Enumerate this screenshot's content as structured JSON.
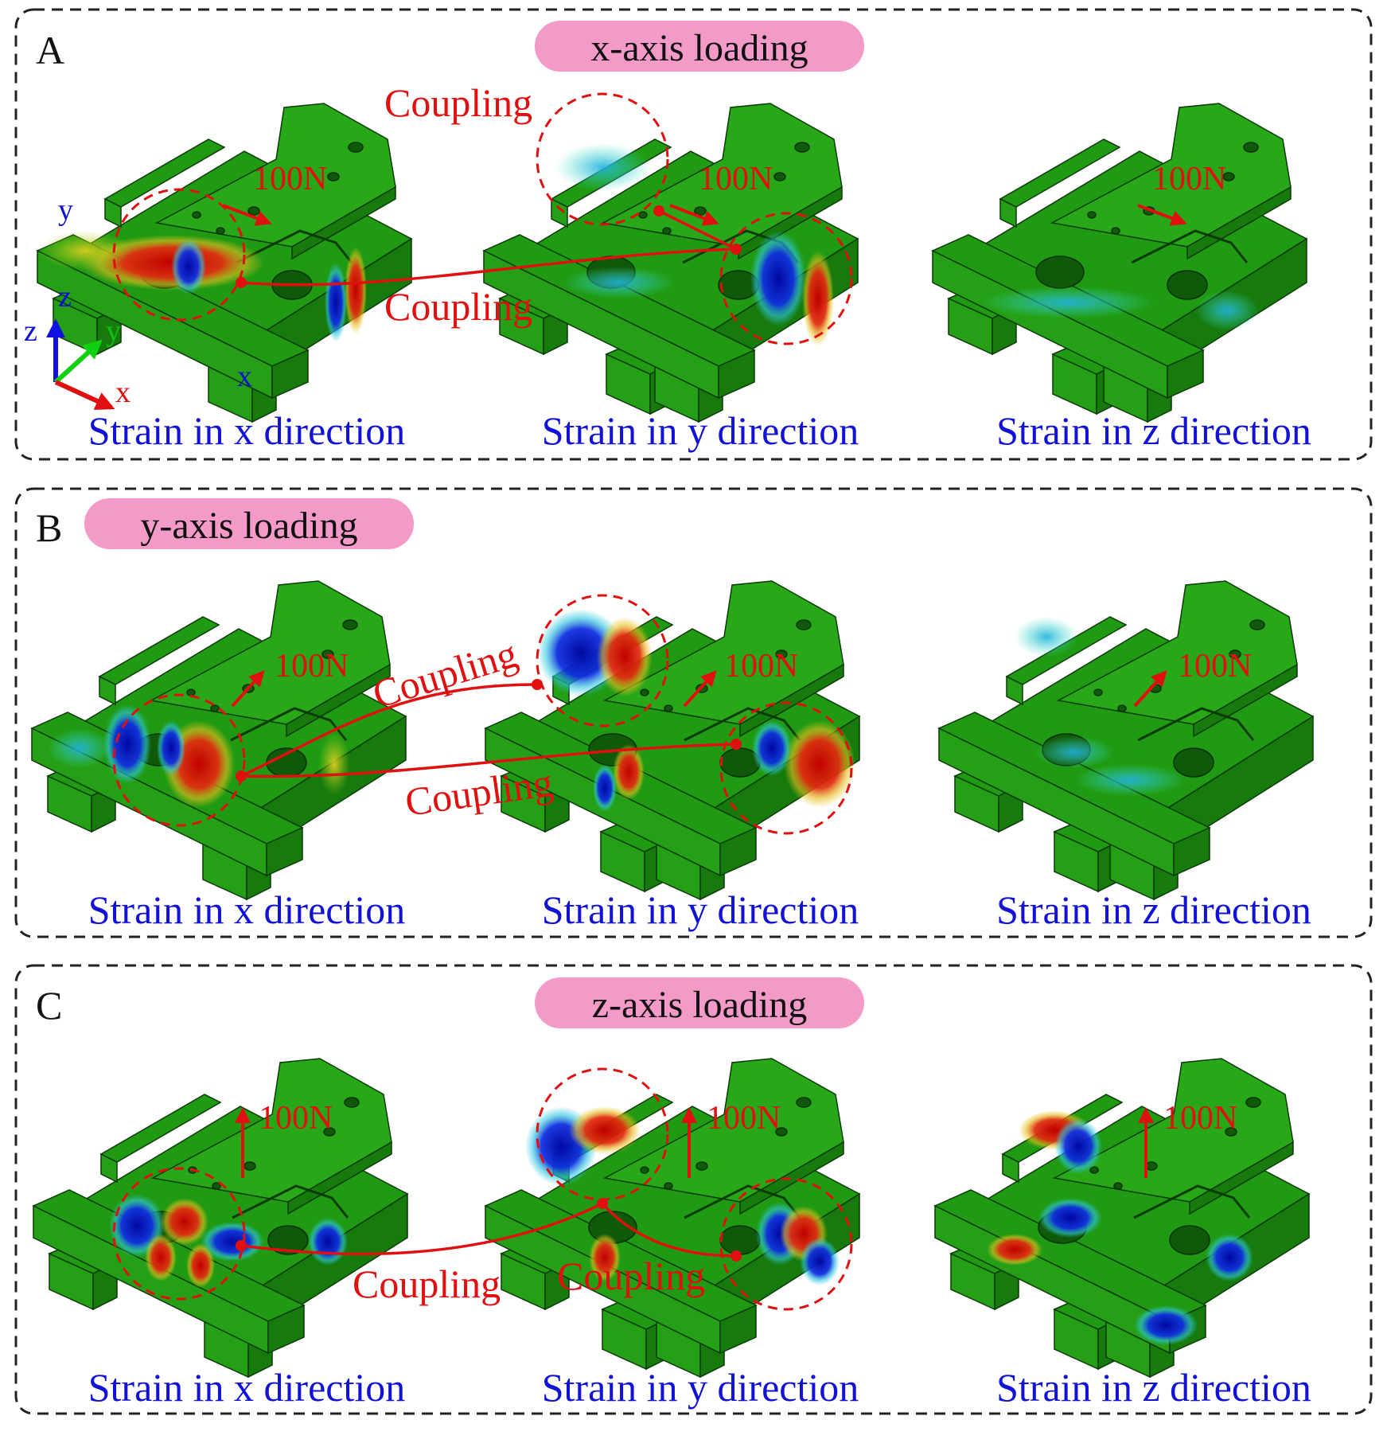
{
  "panels": [
    {
      "letter": "A",
      "loading": "x-axis loading",
      "force": "100N",
      "coupling_labels": [
        "Coupling",
        "Coupling"
      ],
      "captions": [
        "Strain in x direction",
        "Strain in y direction",
        "Strain in z direction"
      ]
    },
    {
      "letter": "B",
      "loading": "y-axis loading",
      "force": "100N",
      "coupling_labels": [
        "Coupling",
        "Coupling"
      ],
      "captions": [
        "Strain in x direction",
        "Strain in y direction",
        "Strain in z direction"
      ]
    },
    {
      "letter": "C",
      "loading": "z-axis loading",
      "force": "100N",
      "coupling_labels": [
        "Coupling",
        "Coupling"
      ],
      "captions": [
        "Strain in x direction",
        "Strain in y direction",
        "Strain in z direction"
      ]
    }
  ],
  "axes": {
    "x": "x",
    "y": "y",
    "z": "z"
  },
  "part_labels": {
    "y": "y",
    "z": "z",
    "x": "x"
  },
  "colors": {
    "model_green": "#1f9a12",
    "strain_high": "#d01010",
    "strain_low": "#0a10b0",
    "annotation": "#e01010",
    "caption": "#1212d6",
    "pill": "#f49ac8"
  }
}
